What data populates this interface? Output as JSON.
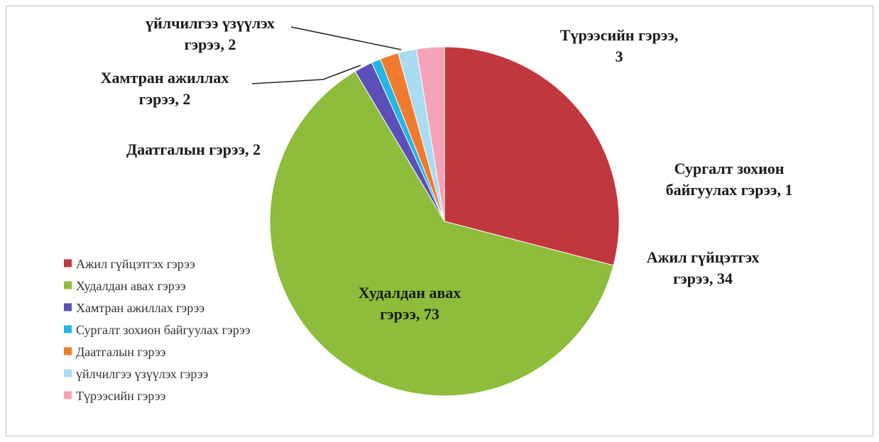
{
  "chart_data": {
    "type": "pie",
    "title": "",
    "categories": [
      "Ажил гүйцэтгэх гэрээ",
      "Худалдан авах гэрээ",
      "Хамтран ажиллах гэрээ",
      "Сургалт зохион байгуулах гэрээ",
      "Даатгалын гэрээ",
      "үйлчилгээ үзүүлэх гэрээ",
      "Түрээсийн гэрээ"
    ],
    "values": [
      34,
      73,
      2,
      1,
      2,
      2,
      3
    ],
    "colors": [
      "#c0383e",
      "#8dbd3a",
      "#5b50b8",
      "#24b5e6",
      "#f17b2c",
      "#a9dcf2",
      "#f5a3b8"
    ],
    "data_labels": [
      [
        "Ажил гүйцэтгэх",
        "гэрээ, 34"
      ],
      [
        "Худалдан авах",
        "гэрээ, 73"
      ],
      [
        "Хамтран ажиллах",
        "гэрээ, 2"
      ],
      [
        "Сургалт зохион",
        "байгуулах гэрээ, 1"
      ],
      [
        "Даатгалын гэрээ, 2"
      ],
      [
        "үйлчилгээ үзүүлэх",
        "гэрээ, 2"
      ],
      [
        "Түрээсийн гэрээ,",
        "3"
      ]
    ],
    "legend_position": "left-bottom"
  }
}
